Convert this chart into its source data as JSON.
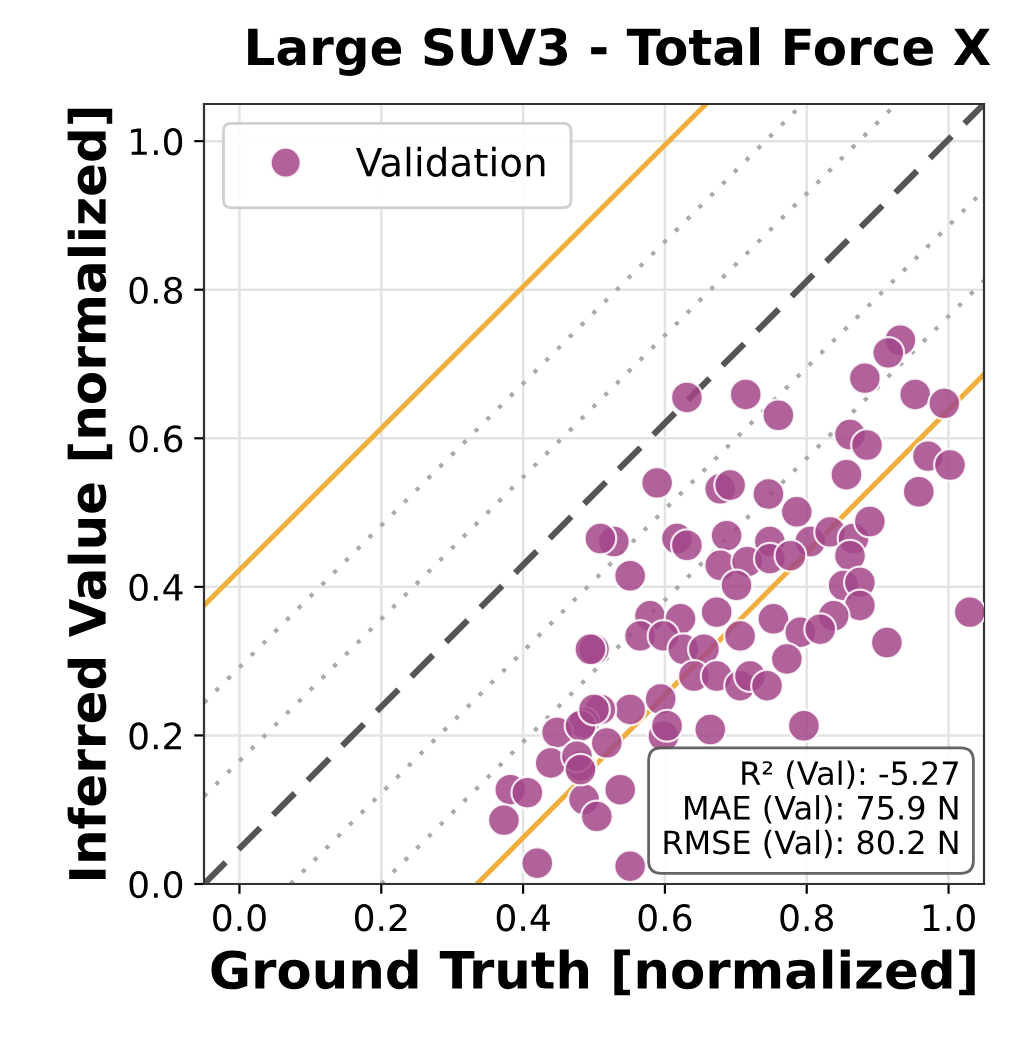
{
  "chart_data": {
    "type": "scatter",
    "title": "Large SUV3 - Total Force X",
    "xlabel": "Ground Truth [normalized]",
    "ylabel": "Inferred Value [normalized]",
    "xlim": [
      -0.05,
      1.05
    ],
    "ylim": [
      0,
      1.05
    ],
    "xticks": [
      {
        "value": 0,
        "label": "0.0"
      },
      0.2,
      0.4,
      0.6,
      0.8,
      {
        "value": 1,
        "label": "1.0"
      }
    ],
    "yticks": [
      {
        "value": 0,
        "label": "0.0"
      },
      0.2,
      0.4,
      0.6,
      0.8,
      {
        "value": 1,
        "label": "1.0"
      }
    ],
    "grid": true,
    "legend": "top left",
    "annotations": [
      "R² (Val): -5.27\nMAE (Val): 75.9 N\nRMSE (Val): 80.2 N"
    ],
    "series": [
      {
        "type": "line",
        "color": "#555555",
        "line_style": "dashed",
        "x": [
          -0.05,
          1.05
        ],
        "values": [
          0.0,
          1.05
        ]
      },
      {
        "type": "line",
        "color": "#aaaaaa",
        "line_style": "dotted",
        "x": [
          -0.05,
          0.794
        ],
        "values": [
          0.244,
          1.05
        ]
      },
      {
        "type": "line",
        "color": "#aaaaaa",
        "line_style": "dotted",
        "x": [
          -0.05,
          0.926
        ],
        "values": [
          0.118,
          1.05
        ]
      },
      {
        "type": "line",
        "color": "#aaaaaa",
        "line_style": "dotted",
        "x": [
          0.072,
          1.05
        ],
        "values": [
          0.0,
          0.934
        ]
      },
      {
        "type": "line",
        "color": "#aaaaaa",
        "line_style": "dotted",
        "x": [
          0.2,
          1.05
        ],
        "values": [
          0.0,
          0.812
        ]
      },
      {
        "type": "line",
        "color": "#f0ae3c",
        "line_style": "solid",
        "x": [
          -0.05,
          0.658
        ],
        "values": [
          0.375,
          1.05
        ]
      },
      {
        "type": "line",
        "color": "#f0ae3c",
        "line_style": "solid",
        "x": [
          0.335,
          1.05
        ],
        "values": [
          0.0,
          0.686
        ]
      },
      {
        "name": "Validation",
        "color": "#a3468a",
        "marker": "circle",
        "x": [
          0.631,
          0.714,
          0.76,
          0.932,
          0.915,
          0.882,
          0.953,
          0.994,
          0.861,
          0.885,
          0.971,
          1.002,
          0.856,
          0.958,
          0.589,
          0.678,
          0.692,
          0.746,
          0.528,
          0.617,
          0.631,
          0.687,
          0.748,
          0.786,
          0.805,
          0.833,
          0.866,
          0.889,
          0.861,
          0.551,
          0.678,
          0.716,
          0.748,
          0.777,
          0.701,
          0.852,
          0.875,
          0.875,
          0.838,
          1.03,
          0.579,
          0.622,
          0.673,
          0.753,
          0.791,
          0.819,
          0.565,
          0.598,
          0.626,
          0.655,
          0.706,
          0.772,
          0.913,
          0.5,
          0.641,
          0.673,
          0.706,
          0.72,
          0.744,
          0.594,
          0.551,
          0.509,
          0.486,
          0.664,
          0.796,
          0.518,
          0.598,
          0.603,
          0.481,
          0.537,
          0.486,
          0.551,
          0.509,
          0.495,
          0.448,
          0.481,
          0.5,
          0.439,
          0.476,
          0.481,
          0.382,
          0.406,
          0.373,
          0.42,
          0.504
        ],
        "values": [
          0.655,
          0.659,
          0.631,
          0.732,
          0.715,
          0.681,
          0.659,
          0.647,
          0.605,
          0.591,
          0.576,
          0.564,
          0.551,
          0.528,
          0.54,
          0.532,
          0.537,
          0.525,
          0.461,
          0.465,
          0.456,
          0.469,
          0.461,
          0.501,
          0.461,
          0.474,
          0.465,
          0.488,
          0.442,
          0.415,
          0.429,
          0.434,
          0.438,
          0.442,
          0.402,
          0.402,
          0.406,
          0.375,
          0.361,
          0.366,
          0.361,
          0.357,
          0.366,
          0.357,
          0.339,
          0.343,
          0.334,
          0.334,
          0.316,
          0.316,
          0.334,
          0.303,
          0.325,
          0.316,
          0.28,
          0.28,
          0.267,
          0.28,
          0.267,
          0.249,
          0.235,
          0.235,
          0.217,
          0.208,
          0.213,
          0.19,
          0.199,
          0.213,
          0.159,
          0.127,
          0.114,
          0.024,
          0.465,
          0.316,
          0.204,
          0.213,
          0.235,
          0.163,
          0.172,
          0.154,
          0.127,
          0.123,
          0.086,
          0.028,
          0.091
        ]
      }
    ]
  }
}
